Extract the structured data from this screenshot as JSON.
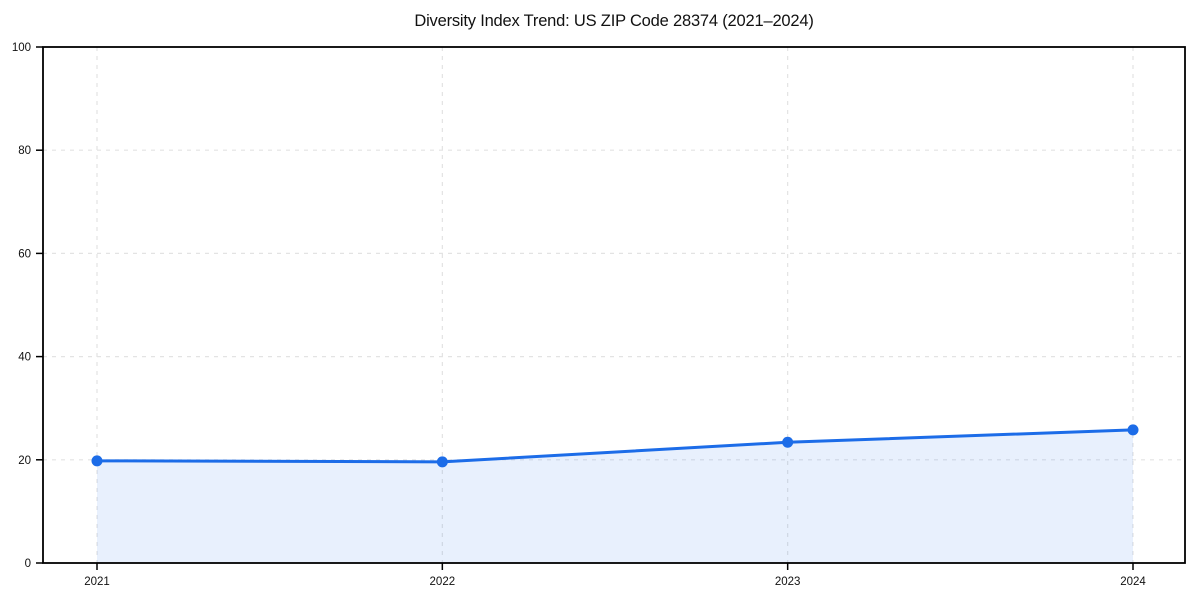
{
  "chart_data": {
    "type": "area",
    "title": "Diversity Index Trend: US ZIP Code 28374 (2021–2024)",
    "series_name": "Diversity Index",
    "categories": [
      "2021",
      "2022",
      "2023",
      "2024"
    ],
    "values": [
      19.8,
      19.6,
      23.4,
      25.8
    ],
    "xlabel": "",
    "ylabel": "",
    "ylim": [
      0,
      100
    ],
    "yticks": [
      0,
      20,
      40,
      60,
      80,
      100
    ],
    "grid": true,
    "grid_style": "dashed",
    "legend": false,
    "colors": {
      "line": "#1c6ce8",
      "marker": "#1c6ce8",
      "fill": "rgba(28,108,232,0.10)",
      "grid": "#e3e3e3",
      "spine": "#000000",
      "tick_text": "#111111",
      "title_text": "#111111",
      "background": "#ffffff"
    }
  }
}
